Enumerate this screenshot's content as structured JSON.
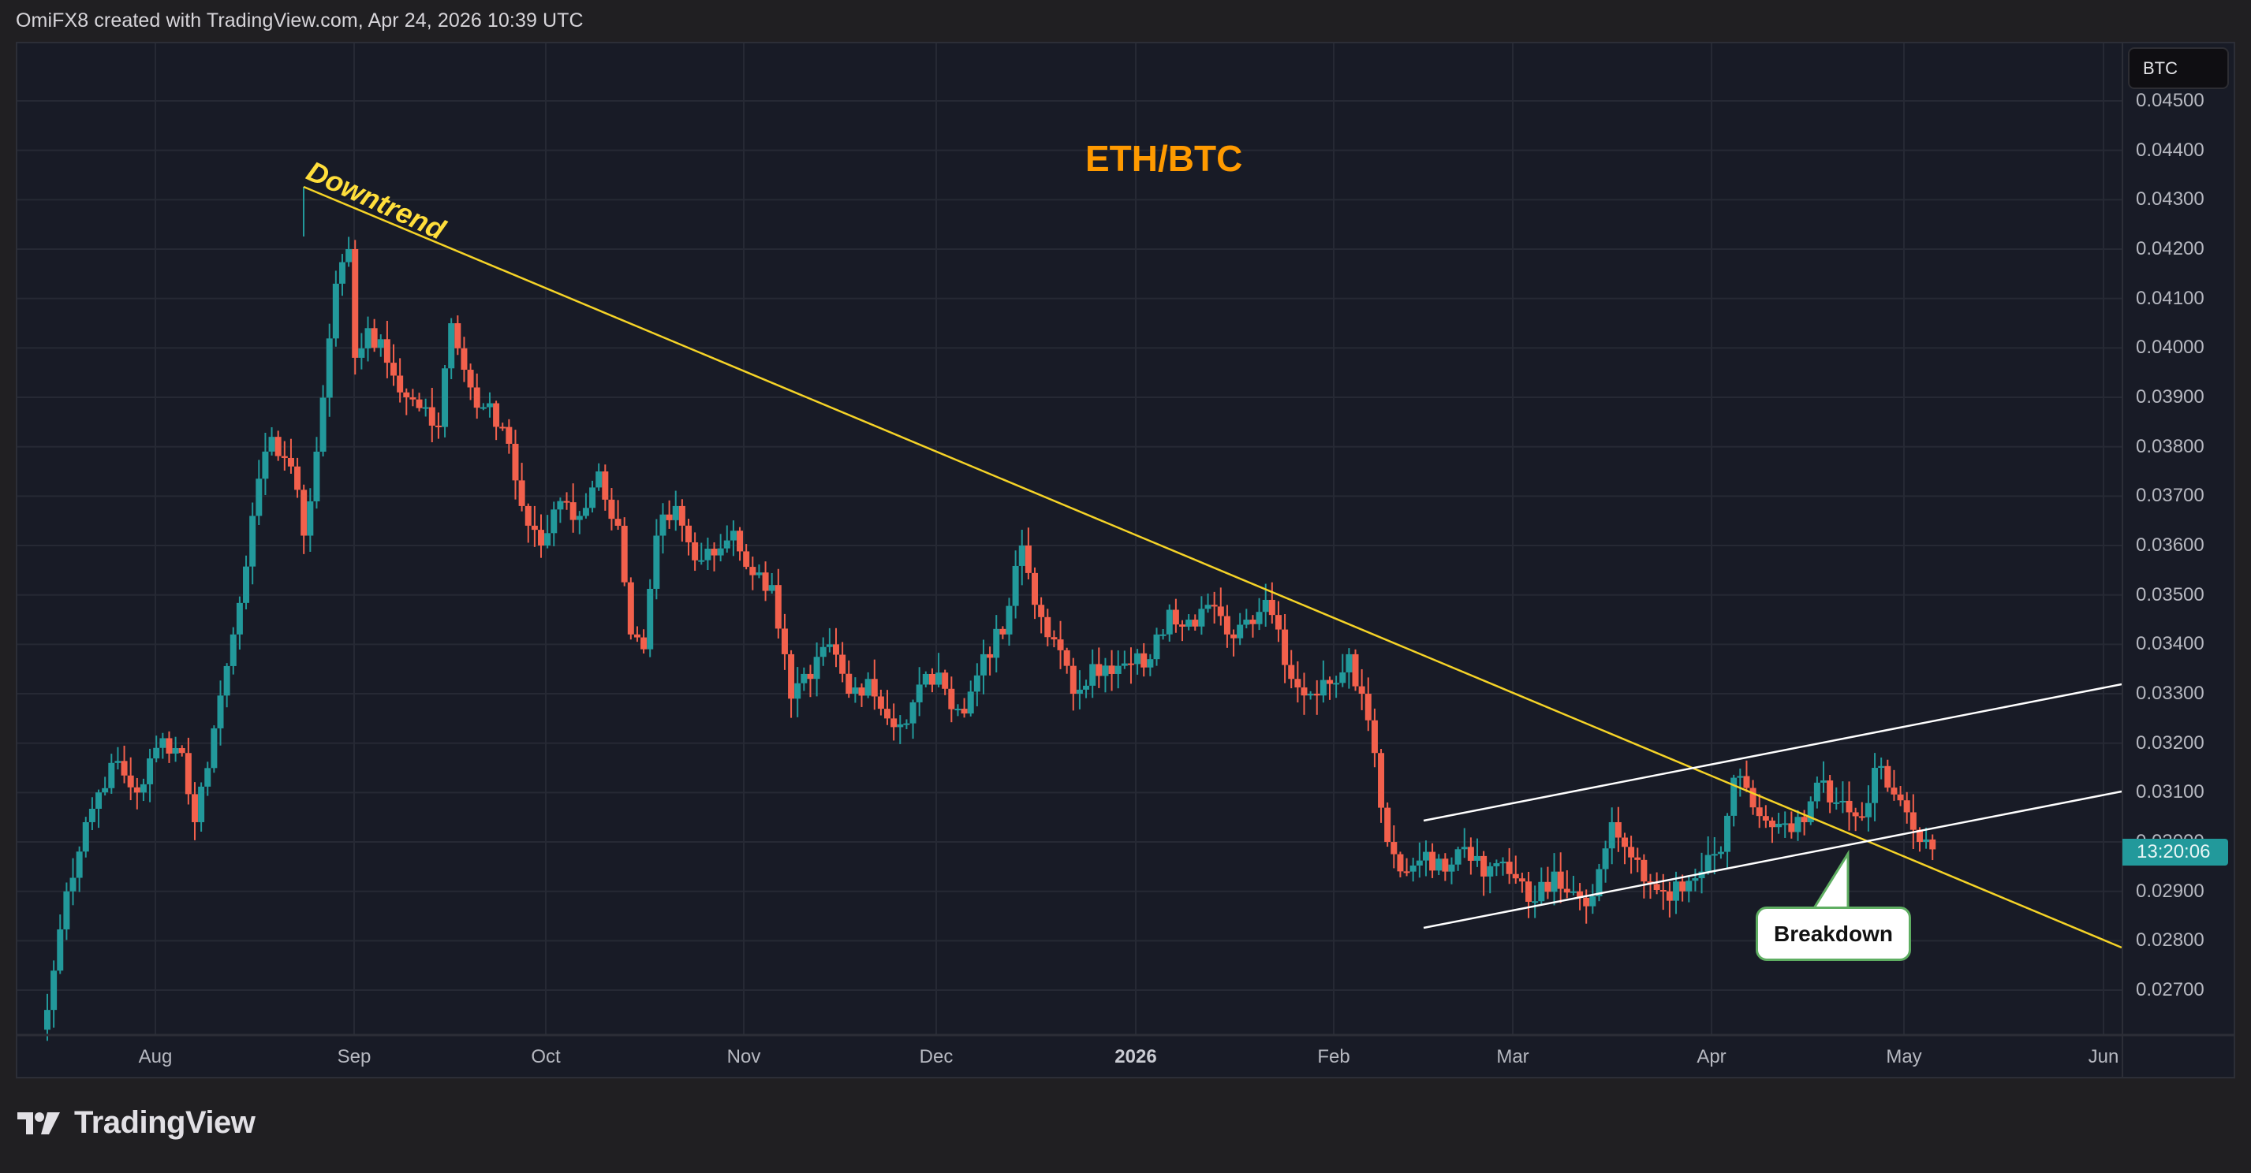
{
  "header": {
    "attribution": "OmiFX8 created with TradingView.com, Apr 24, 2026 10:39 UTC"
  },
  "chart": {
    "pair_title": "ETH/BTC",
    "currency_badge": "BTC",
    "countdown_label": "13:20:06",
    "annotations": {
      "downtrend_label": "Downtrend",
      "breakdown_label": "Breakdown"
    },
    "colors": {
      "up": "#22999b",
      "down": "#f2604c",
      "trendline": "#f5d327",
      "channel": "#ffffff",
      "title": "#ff9a00",
      "callout_border": "#5fae62",
      "grid": "#262934",
      "background": "#181b26"
    }
  },
  "branding": {
    "logo_text": "TradingView"
  },
  "chart_data": {
    "type": "candlestick",
    "title": "ETH/BTC",
    "xlabel": "",
    "ylabel": "BTC",
    "ylim": [
      0.0265,
      0.0455
    ],
    "grid": true,
    "x_ticks": [
      "Aug",
      "Sep",
      "Oct",
      "Nov",
      "Dec",
      "2026",
      "Feb",
      "Mar",
      "Apr",
      "May",
      "Jun"
    ],
    "y_ticks": [
      "0.02700",
      "0.02800",
      "0.02900",
      "0.03000",
      "0.03100",
      "0.03200",
      "0.03300",
      "0.03400",
      "0.03500",
      "0.03600",
      "0.03700",
      "0.03800",
      "0.03900",
      "0.04000",
      "0.04100",
      "0.04200",
      "0.04300",
      "0.04400",
      "0.04500"
    ],
    "interval": "1D",
    "start_date": "2025-07-14",
    "close_waypoints": [
      {
        "day": 0,
        "close": 0.0266
      },
      {
        "day": 3,
        "close": 0.029
      },
      {
        "day": 6,
        "close": 0.0304
      },
      {
        "day": 10,
        "close": 0.0316
      },
      {
        "day": 14,
        "close": 0.031
      },
      {
        "day": 18,
        "close": 0.0321
      },
      {
        "day": 21,
        "close": 0.0318
      },
      {
        "day": 23,
        "close": 0.0304
      },
      {
        "day": 26,
        "close": 0.0323
      },
      {
        "day": 29,
        "close": 0.0342
      },
      {
        "day": 32,
        "close": 0.0366
      },
      {
        "day": 35,
        "close": 0.0382
      },
      {
        "day": 38,
        "close": 0.0376
      },
      {
        "day": 40,
        "close": 0.0362
      },
      {
        "day": 42,
        "close": 0.0379
      },
      {
        "day": 45,
        "close": 0.0413
      },
      {
        "day": 47,
        "close": 0.042
      },
      {
        "day": 48,
        "close": 0.0398
      },
      {
        "day": 50,
        "close": 0.0404
      },
      {
        "day": 53,
        "close": 0.0397
      },
      {
        "day": 56,
        "close": 0.039
      },
      {
        "day": 59,
        "close": 0.0388
      },
      {
        "day": 61,
        "close": 0.0384
      },
      {
        "day": 63,
        "close": 0.0405
      },
      {
        "day": 66,
        "close": 0.0392
      },
      {
        "day": 68,
        "close": 0.0388
      },
      {
        "day": 71,
        "close": 0.0384
      },
      {
        "day": 74,
        "close": 0.0368
      },
      {
        "day": 77,
        "close": 0.036
      },
      {
        "day": 80,
        "close": 0.0369
      },
      {
        "day": 83,
        "close": 0.0366
      },
      {
        "day": 86,
        "close": 0.0375
      },
      {
        "day": 89,
        "close": 0.0364
      },
      {
        "day": 91,
        "close": 0.0342
      },
      {
        "day": 93,
        "close": 0.0339
      },
      {
        "day": 95,
        "close": 0.0362
      },
      {
        "day": 98,
        "close": 0.0368
      },
      {
        "day": 101,
        "close": 0.0357
      },
      {
        "day": 104,
        "close": 0.0358
      },
      {
        "day": 107,
        "close": 0.0363
      },
      {
        "day": 110,
        "close": 0.0354
      },
      {
        "day": 113,
        "close": 0.0352
      },
      {
        "day": 116,
        "close": 0.0329
      },
      {
        "day": 119,
        "close": 0.0333
      },
      {
        "day": 122,
        "close": 0.034
      },
      {
        "day": 125,
        "close": 0.033
      },
      {
        "day": 128,
        "close": 0.0333
      },
      {
        "day": 131,
        "close": 0.0325
      },
      {
        "day": 134,
        "close": 0.0324
      },
      {
        "day": 137,
        "close": 0.0334
      },
      {
        "day": 140,
        "close": 0.0331
      },
      {
        "day": 143,
        "close": 0.0326
      },
      {
        "day": 146,
        "close": 0.0338
      },
      {
        "day": 149,
        "close": 0.0342
      },
      {
        "day": 152,
        "close": 0.036
      },
      {
        "day": 154,
        "close": 0.0348
      },
      {
        "day": 157,
        "close": 0.0341
      },
      {
        "day": 160,
        "close": 0.033
      },
      {
        "day": 163,
        "close": 0.0336
      },
      {
        "day": 166,
        "close": 0.0334
      },
      {
        "day": 169,
        "close": 0.0336
      },
      {
        "day": 172,
        "close": 0.0337
      },
      {
        "day": 175,
        "close": 0.0347
      },
      {
        "day": 178,
        "close": 0.0345
      },
      {
        "day": 181,
        "close": 0.0348
      },
      {
        "day": 184,
        "close": 0.0342
      },
      {
        "day": 187,
        "close": 0.0345
      },
      {
        "day": 190,
        "close": 0.0349
      },
      {
        "day": 192,
        "close": 0.0343
      },
      {
        "day": 194,
        "close": 0.0333
      },
      {
        "day": 197,
        "close": 0.033
      },
      {
        "day": 200,
        "close": 0.0332
      },
      {
        "day": 203,
        "close": 0.0338
      },
      {
        "day": 205,
        "close": 0.033
      },
      {
        "day": 207,
        "close": 0.0318
      },
      {
        "day": 209,
        "close": 0.03
      },
      {
        "day": 212,
        "close": 0.0294
      },
      {
        "day": 215,
        "close": 0.0298
      },
      {
        "day": 218,
        "close": 0.0294
      },
      {
        "day": 221,
        "close": 0.0299
      },
      {
        "day": 224,
        "close": 0.0293
      },
      {
        "day": 227,
        "close": 0.0296
      },
      {
        "day": 230,
        "close": 0.0292
      },
      {
        "day": 232,
        "close": 0.0288
      },
      {
        "day": 235,
        "close": 0.0294
      },
      {
        "day": 238,
        "close": 0.029
      },
      {
        "day": 241,
        "close": 0.0289
      },
      {
        "day": 244,
        "close": 0.0304
      },
      {
        "day": 246,
        "close": 0.0299
      },
      {
        "day": 249,
        "close": 0.0292
      },
      {
        "day": 252,
        "close": 0.029
      },
      {
        "day": 255,
        "close": 0.029
      },
      {
        "day": 258,
        "close": 0.0294
      },
      {
        "day": 261,
        "close": 0.0298
      },
      {
        "day": 263,
        "close": 0.0313
      },
      {
        "day": 266,
        "close": 0.0307
      },
      {
        "day": 269,
        "close": 0.0303
      },
      {
        "day": 272,
        "close": 0.0302
      },
      {
        "day": 274,
        "close": 0.0304
      },
      {
        "day": 276,
        "close": 0.0312
      },
      {
        "day": 278,
        "close": 0.0308
      },
      {
        "day": 281,
        "close": 0.0306
      },
      {
        "day": 283,
        "close": 0.0305
      },
      {
        "day": 285,
        "close": 0.0315
      },
      {
        "day": 287,
        "close": 0.0311
      },
      {
        "day": 290,
        "close": 0.0306
      },
      {
        "day": 292,
        "close": 0.03
      },
      {
        "day": 294,
        "close": 0.02985
      }
    ],
    "last_price": 0.02985,
    "drawings": [
      {
        "type": "trendline",
        "name": "Downtrend",
        "from": {
          "date": "2025-08-23",
          "price": 0.04317
        },
        "to": {
          "date": "2026-06-01",
          "price": 0.02777
        }
      },
      {
        "type": "channel-upper",
        "from": {
          "date": "2026-02-15",
          "price": 0.03041
        },
        "to": {
          "date": "2026-06-01",
          "price": 0.03317
        }
      },
      {
        "type": "channel-lower",
        "from": {
          "date": "2026-02-15",
          "price": 0.02824
        },
        "to": {
          "date": "2026-06-01",
          "price": 0.031
        }
      }
    ],
    "annotations": [
      "ETH/BTC",
      "Downtrend",
      "Breakdown"
    ]
  }
}
